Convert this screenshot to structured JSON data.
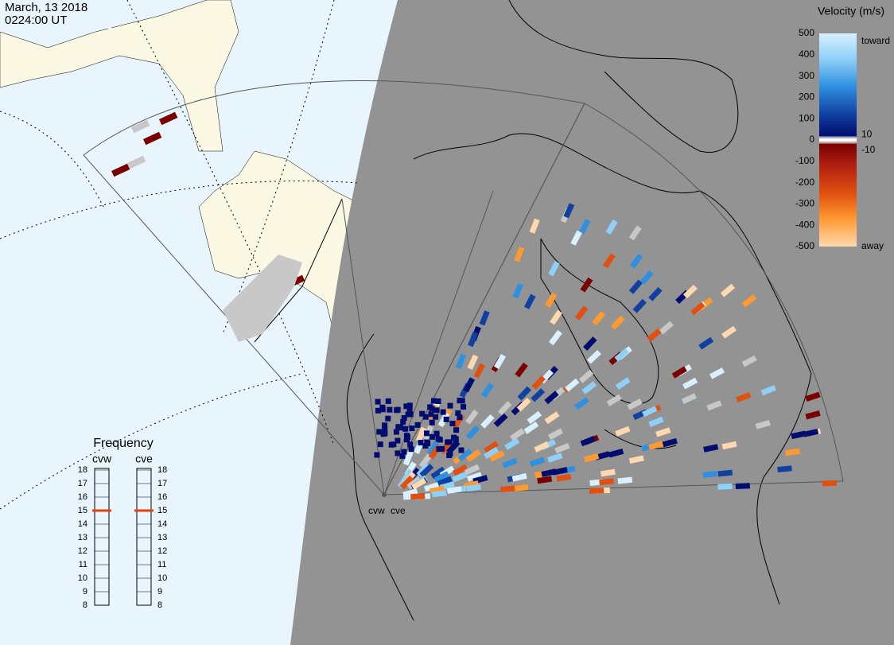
{
  "header": {
    "date": "March, 13 2018",
    "time": "0224:00 UT"
  },
  "velocity_scale": {
    "title": "Velocity (m/s)",
    "lim": [
      -500,
      500
    ],
    "ticks": [
      500,
      400,
      300,
      200,
      100,
      10,
      0,
      -10,
      -100,
      -200,
      -300,
      -400,
      -500
    ],
    "toward": "toward",
    "away": "away"
  },
  "frequency": {
    "title": "Frequency",
    "lim": [
      8,
      18
    ],
    "ticks": [
      8,
      9,
      10,
      11,
      12,
      13,
      14,
      15,
      16,
      17,
      18
    ],
    "radars": [
      {
        "name": "cvw",
        "value": 15
      },
      {
        "name": "cve",
        "value": 15
      }
    ]
  },
  "radar_labels": [
    "cvw",
    "cve"
  ]
}
